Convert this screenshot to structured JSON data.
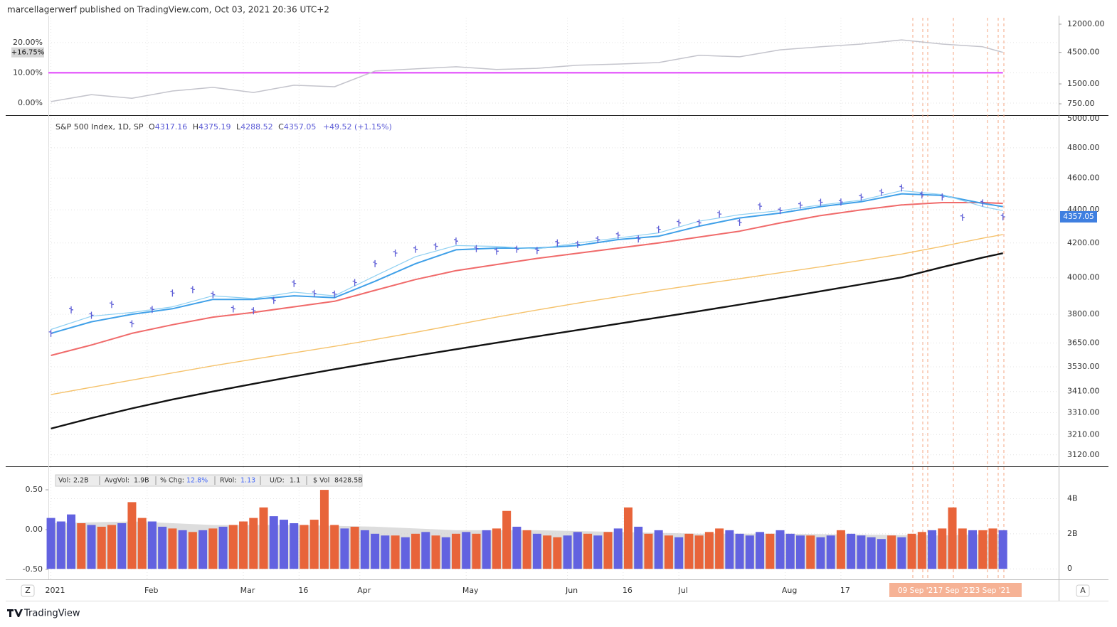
{
  "header": {
    "title": "marcellagerwerf published on TradingView.com, Oct 03, 2021 20:36 UTC+2"
  },
  "chart_data": [
    {
      "type": "line",
      "xlim": [
        -0.5,
        199
      ],
      "ylim": [
        -4,
        28.2
      ],
      "y_side": "left",
      "yticks": [
        {
          "value": 20,
          "label": "20.00%"
        },
        {
          "value": 10,
          "label": "10.00%"
        },
        {
          "value": 0,
          "label": "0.00%"
        }
      ],
      "y2lim": [
        505,
        15000
      ],
      "y2log": true,
      "y2ticks": [
        {
          "value": 12000,
          "label": "12000.00"
        },
        {
          "value": 4500,
          "label": "4500.00"
        },
        {
          "value": 1500,
          "label": "1500.00"
        },
        {
          "value": 750,
          "label": "750.00"
        }
      ],
      "grid": true,
      "series": [
        {
          "style": "line",
          "color": "#c4c4cc",
          "x": [
            0,
            8,
            16,
            24,
            32,
            40,
            48,
            56,
            64,
            72,
            80,
            88,
            96,
            104,
            112,
            120,
            128,
            136,
            144,
            152,
            160,
            168,
            176,
            184,
            188
          ],
          "values": [
            0.5,
            2.8,
            1.6,
            4.0,
            5.2,
            3.5,
            5.9,
            5.4,
            10.6,
            11.3,
            12.0,
            11.1,
            11.5,
            12.5,
            12.9,
            13.4,
            15.8,
            15.3,
            17.6,
            18.6,
            19.5,
            20.9,
            19.5,
            18.6,
            16.75
          ]
        }
      ],
      "hlines": [
        {
          "value": 10,
          "color": "#e040fb"
        }
      ],
      "marker_label": {
        "value": 16.75,
        "label": "+16.75%"
      }
    },
    {
      "type": "line",
      "xlim": [
        -0.5,
        199
      ],
      "ylim": [
        3070,
        5020
      ],
      "log": true,
      "y_side": "right",
      "yticks": [
        {
          "value": 5000,
          "label": "5000.00"
        },
        {
          "value": 4800,
          "label": "4800.00"
        },
        {
          "value": 4600,
          "label": "4600.00"
        },
        {
          "value": 4400,
          "label": "4400.00"
        },
        {
          "value": 4200,
          "label": "4200.00"
        },
        {
          "value": 4000,
          "label": "4000.00"
        },
        {
          "value": 3800,
          "label": "3800.00"
        },
        {
          "value": 3650,
          "label": "3650.00"
        },
        {
          "value": 3530,
          "label": "3530.00"
        },
        {
          "value": 3410,
          "label": "3410.00"
        },
        {
          "value": 3310,
          "label": "3310.00"
        },
        {
          "value": 3210,
          "label": "3210.00"
        },
        {
          "value": 3120,
          "label": "3120.00"
        }
      ],
      "grid": true,
      "legend": {
        "symbol": "S&P 500 Index, 1D, SP",
        "open_label": "O",
        "open": 4317.16,
        "high_label": "H",
        "high": 4375.19,
        "low_label": "L",
        "low": 4288.52,
        "close_label": "C",
        "close": 4357.05,
        "change": "+49.52 (+1.15%)"
      },
      "series": [
        {
          "style": "line",
          "color": "#111111",
          "width": 2.4,
          "x": [
            0,
            8,
            16,
            24,
            32,
            40,
            48,
            56,
            64,
            72,
            80,
            88,
            96,
            104,
            112,
            120,
            128,
            136,
            144,
            152,
            160,
            168,
            176,
            184,
            188
          ],
          "values": [
            3237,
            3285,
            3330,
            3372,
            3410,
            3447,
            3483,
            3518,
            3552,
            3585,
            3618,
            3651,
            3684,
            3717,
            3750,
            3783,
            3817,
            3852,
            3888,
            3925,
            3963,
            4002,
            4060,
            4115,
            4140
          ]
        },
        {
          "style": "line",
          "color": "#f5c26b",
          "width": 1.4,
          "x": [
            0,
            8,
            16,
            24,
            32,
            40,
            48,
            56,
            64,
            72,
            80,
            88,
            96,
            104,
            112,
            120,
            128,
            136,
            144,
            152,
            160,
            168,
            176,
            184,
            188
          ],
          "values": [
            3395,
            3430,
            3465,
            3500,
            3535,
            3568,
            3600,
            3633,
            3668,
            3705,
            3745,
            3785,
            3823,
            3860,
            3895,
            3930,
            3963,
            3995,
            4028,
            4062,
            4098,
            4135,
            4180,
            4228,
            4250
          ]
        },
        {
          "style": "line",
          "color": "#f06a6a",
          "width": 2,
          "x": [
            0,
            8,
            16,
            24,
            32,
            40,
            48,
            56,
            64,
            72,
            80,
            88,
            96,
            104,
            112,
            120,
            128,
            136,
            144,
            152,
            160,
            168,
            176,
            184,
            188
          ],
          "values": [
            3587,
            3640,
            3700,
            3745,
            3785,
            3810,
            3840,
            3870,
            3930,
            3990,
            4040,
            4075,
            4110,
            4140,
            4170,
            4200,
            4235,
            4270,
            4320,
            4365,
            4400,
            4430,
            4445,
            4445,
            4440
          ]
        },
        {
          "style": "line",
          "color": "#3fa0e8",
          "width": 2,
          "x": [
            0,
            8,
            16,
            24,
            32,
            40,
            48,
            56,
            64,
            72,
            80,
            88,
            96,
            104,
            112,
            120,
            128,
            136,
            144,
            152,
            160,
            168,
            176,
            184,
            188
          ],
          "values": [
            3700,
            3760,
            3800,
            3830,
            3880,
            3880,
            3900,
            3890,
            3980,
            4080,
            4160,
            4170,
            4170,
            4185,
            4220,
            4240,
            4300,
            4350,
            4380,
            4420,
            4450,
            4500,
            4490,
            4440,
            4420
          ]
        },
        {
          "style": "line",
          "color": "#8fd0f2",
          "width": 1.2,
          "x": [
            0,
            8,
            16,
            24,
            32,
            40,
            48,
            56,
            64,
            72,
            80,
            88,
            96,
            104,
            112,
            120,
            128,
            136,
            144,
            152,
            160,
            168,
            176,
            184,
            188
          ],
          "values": [
            3720,
            3790,
            3810,
            3840,
            3900,
            3885,
            3920,
            3900,
            4010,
            4120,
            4185,
            4180,
            4165,
            4200,
            4230,
            4260,
            4330,
            4370,
            4395,
            4430,
            4460,
            4520,
            4495,
            4420,
            4395
          ]
        },
        {
          "style": "ticks",
          "color": "#5b5bd6",
          "x": [
            0,
            4,
            8,
            12,
            16,
            20,
            24,
            28,
            32,
            36,
            40,
            44,
            48,
            52,
            56,
            60,
            64,
            68,
            72,
            76,
            80,
            84,
            88,
            92,
            96,
            100,
            104,
            108,
            112,
            116,
            120,
            124,
            128,
            132,
            136,
            140,
            144,
            148,
            152,
            156,
            160,
            164,
            168,
            172,
            176,
            180,
            184,
            188
          ],
          "values": [
            3700,
            3824,
            3795,
            3853,
            3750,
            3826,
            3915,
            3934,
            3906,
            3829,
            3819,
            3875,
            3968,
            3913,
            3909,
            3973,
            4080,
            4141,
            4163,
            4180,
            4211,
            4167,
            4152,
            4163,
            4156,
            4200,
            4192,
            4220,
            4246,
            4224,
            4281,
            4320,
            4320,
            4374,
            4323,
            4422,
            4395,
            4429,
            4447,
            4448,
            4479,
            4509,
            4537,
            4493,
            4480,
            4354,
            4443,
            4357.05
          ]
        }
      ]
    },
    {
      "type": "bar",
      "xlim": [
        -0.5,
        199
      ],
      "ylim": [
        -0.6,
        5.8
      ],
      "y_side": "right",
      "yticks": [
        {
          "value": 4,
          "label": "4B"
        },
        {
          "value": 2,
          "label": "2B"
        },
        0
      ],
      "y2lim": [
        -0.625,
        0.786
      ],
      "y2ticks": [
        {
          "value": 0.5,
          "label": "0.50"
        },
        {
          "value": 0,
          "label": "0.00"
        },
        {
          "value": -0.5,
          "label": "-0.50"
        }
      ],
      "grid": true,
      "info": [
        {
          "label": "Vol:",
          "value": "2.2B",
          "color": "#333333"
        },
        {
          "label": "AvgVol:",
          "value": "1.9B",
          "color": "#333333"
        },
        {
          "label": "% Chg:",
          "value": "12.8%",
          "color": "#4a6cf7"
        },
        {
          "label": "RVol:",
          "value": 1.13,
          "color": "#4a6cf7"
        },
        {
          "label": "U/D:",
          "value": 1.1,
          "color": "#333333"
        },
        {
          "label": "$ Vol",
          "value": "8428.5B",
          "color": "#333333"
        }
      ],
      "series": [
        {
          "style": "area",
          "color": "#cfcfcf",
          "x": [
            0,
            16,
            32,
            48,
            64,
            80,
            96,
            112,
            128,
            144,
            160,
            176,
            188
          ],
          "values": [
            2.6,
            2.7,
            2.5,
            2.5,
            2.4,
            2.2,
            2.2,
            2.1,
            2.0,
            2.0,
            1.95,
            1.9,
            2.0
          ]
        },
        {
          "style": "bar",
          "color": "#6262e0",
          "x": [
            0,
            2,
            4,
            8,
            14,
            20,
            22,
            26,
            30,
            34,
            44,
            46,
            48,
            58,
            62,
            64,
            66,
            70,
            74,
            78,
            82,
            86,
            92,
            96,
            102,
            104,
            108,
            112,
            116,
            120,
            124,
            134,
            136,
            138,
            140,
            144,
            146,
            148,
            152,
            154,
            158,
            160,
            162,
            164,
            168,
            174,
            182,
            188
          ],
          "values": [
            2.9,
            2.7,
            3.1,
            2.5,
            2.6,
            2.7,
            2.4,
            2.2,
            2.2,
            2.4,
            3.0,
            2.8,
            2.6,
            2.3,
            2.2,
            2.0,
            1.9,
            1.8,
            2.1,
            1.8,
            2.1,
            2.2,
            2.4,
            2.0,
            1.9,
            2.1,
            1.9,
            2.3,
            2.4,
            2.2,
            1.8,
            2.2,
            2.0,
            1.9,
            2.1,
            2.2,
            2.0,
            1.9,
            1.8,
            1.9,
            2.0,
            1.9,
            1.8,
            1.7,
            1.8,
            2.2,
            2.2,
            2.2
          ]
        },
        {
          "style": "bar",
          "color": "#e8643a",
          "x": [
            6,
            10,
            12,
            16,
            18,
            24,
            28,
            32,
            36,
            38,
            40,
            42,
            50,
            52,
            54,
            56,
            60,
            68,
            72,
            76,
            80,
            84,
            88,
            90,
            94,
            98,
            100,
            106,
            110,
            114,
            118,
            122,
            126,
            128,
            130,
            132,
            142,
            150,
            156,
            166,
            170,
            172,
            176,
            178,
            180,
            184,
            186
          ],
          "values": [
            2.6,
            2.4,
            2.5,
            3.8,
            2.9,
            2.3,
            2.1,
            2.3,
            2.5,
            2.7,
            2.9,
            3.5,
            2.5,
            2.8,
            4.5,
            2.5,
            2.4,
            1.9,
            2.0,
            1.9,
            2.0,
            2.0,
            2.3,
            3.3,
            2.2,
            1.9,
            1.8,
            2.0,
            2.1,
            3.5,
            2.0,
            1.9,
            2.0,
            1.9,
            2.1,
            2.3,
            2.0,
            1.9,
            2.2,
            1.9,
            2.0,
            2.1,
            2.3,
            3.5,
            2.3,
            2.2,
            2.3
          ]
        }
      ]
    }
  ],
  "x_axis": {
    "xlim": [
      -0.5,
      199
    ],
    "ticks": [
      {
        "value": 0,
        "label": "2021"
      },
      {
        "value": 19,
        "label": "Feb"
      },
      {
        "value": 38,
        "label": "Mar"
      },
      {
        "value": 49,
        "label": "16"
      },
      {
        "value": 61,
        "label": "Apr"
      },
      {
        "value": 82,
        "label": "May"
      },
      {
        "value": 102,
        "label": "Jun"
      },
      {
        "value": 113,
        "label": "16"
      },
      {
        "value": 124,
        "label": "Jul"
      },
      {
        "value": 145,
        "label": "Aug"
      },
      {
        "value": 156,
        "label": "17"
      }
    ],
    "date_tags": [
      "09 Sep '21",
      "17 Sep '21",
      "23 Sep '21"
    ],
    "left_button": "Z",
    "right_button": "A"
  },
  "footer": {
    "brand": "TradingView"
  }
}
